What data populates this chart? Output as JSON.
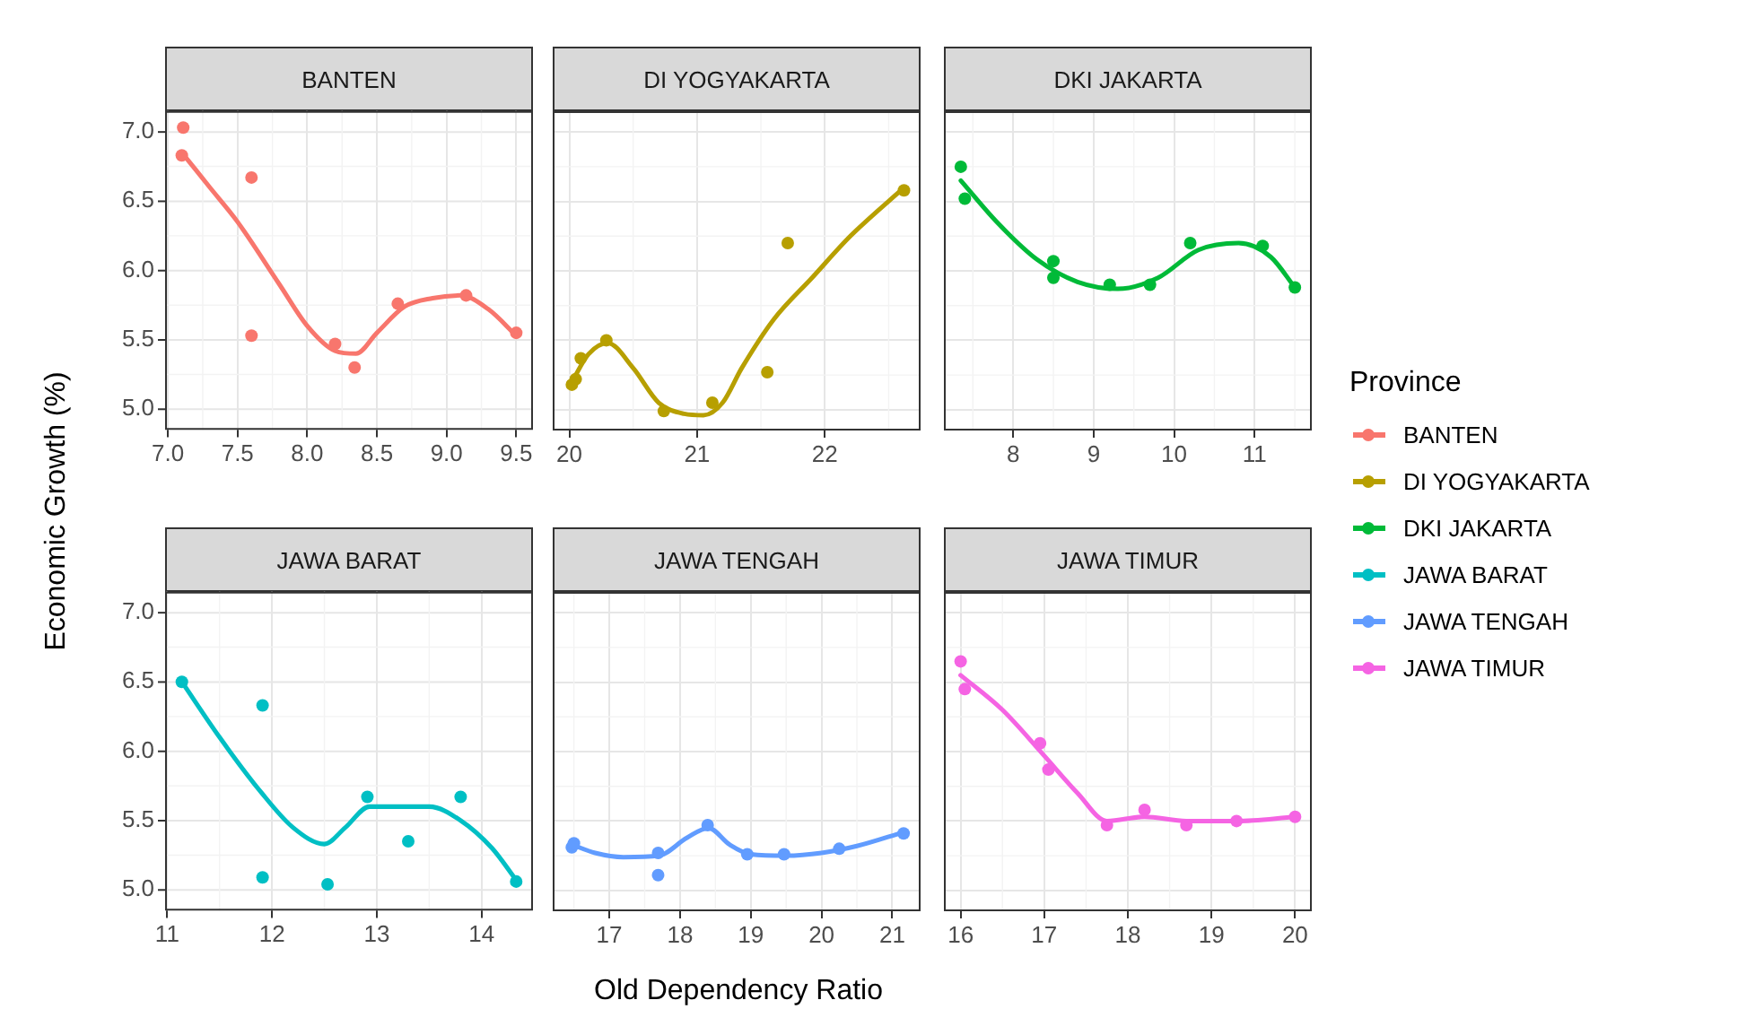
{
  "chart_data": [
    {
      "type": "scatter",
      "title": "BANTEN",
      "ylabel": "Economic Growth (%)",
      "legend": "right",
      "legend_title": "Province",
      "marker": "circle",
      "grid": true,
      "tick_labels": "xy",
      "xlim": [
        6.98,
        9.62
      ],
      "xticks": [
        {
          "value": 7,
          "label": "7.0"
        },
        {
          "value": 7.5,
          "label": "7.5"
        },
        {
          "value": 8,
          "label": "8.0"
        },
        {
          "value": 8.5,
          "label": "8.5"
        },
        {
          "value": 9,
          "label": "9.0"
        },
        {
          "value": 9.5,
          "label": "9.5"
        }
      ],
      "ylim": [
        4.85,
        7.15
      ],
      "yticks": [
        {
          "value": 5,
          "label": "5.0"
        },
        {
          "value": 5.5,
          "label": "5.5"
        },
        {
          "value": 6,
          "label": "6.0"
        },
        {
          "value": 6.5,
          "label": "6.5"
        },
        {
          "value": 7,
          "label": "7.0"
        }
      ],
      "series": [
        {
          "name": "BANTEN",
          "color": "#f8766d",
          "x": [
            7.11,
            7.1,
            7.6,
            7.6,
            8.2,
            8.34,
            8.65,
            9.14,
            9.5
          ],
          "values": [
            7.03,
            6.83,
            6.67,
            5.53,
            5.47,
            5.3,
            5.76,
            5.82,
            5.55
          ]
        },
        {
          "type": "line",
          "marker": "none",
          "color": "#f8766d",
          "x": [
            7.1,
            7.3,
            7.5,
            7.8,
            8.0,
            8.2,
            8.35,
            8.5,
            8.7,
            8.9,
            9.1,
            9.3,
            9.5
          ],
          "values": [
            6.85,
            6.6,
            6.35,
            5.9,
            5.6,
            5.42,
            5.4,
            5.55,
            5.74,
            5.8,
            5.82,
            5.72,
            5.53
          ]
        }
      ]
    },
    {
      "type": "scatter",
      "title": "DI YOGYAKARTA",
      "legend": "right",
      "marker": "circle",
      "grid": true,
      "tick_labels": "x",
      "xlim": [
        19.87,
        22.75
      ],
      "xticks": [
        20,
        21,
        22
      ],
      "ylim": [
        4.85,
        7.15
      ],
      "yticks": [
        5,
        5.5,
        6,
        6.5,
        7
      ],
      "series": [
        {
          "name": "DI YOGYAKARTA",
          "color": "#b79f00",
          "x": [
            20.02,
            20.05,
            20.09,
            20.29,
            20.74,
            21.12,
            21.55,
            21.71,
            22.62
          ],
          "values": [
            5.18,
            5.22,
            5.37,
            5.5,
            4.99,
            5.05,
            5.27,
            6.2,
            6.58
          ]
        },
        {
          "type": "line",
          "marker": "none",
          "color": "#b79f00",
          "x": [
            20.02,
            20.15,
            20.3,
            20.5,
            20.7,
            20.9,
            21.05,
            21.2,
            21.35,
            21.6,
            21.9,
            22.2,
            22.62
          ],
          "values": [
            5.2,
            5.4,
            5.48,
            5.3,
            5.05,
            4.97,
            4.96,
            5.05,
            5.3,
            5.65,
            5.95,
            6.25,
            6.6
          ]
        }
      ]
    },
    {
      "type": "scatter",
      "title": "DKI JAKARTA",
      "legend": "right",
      "marker": "circle",
      "grid": true,
      "tick_labels": "x",
      "xlim": [
        7.14,
        11.71
      ],
      "xticks": [
        8,
        9,
        10,
        11
      ],
      "ylim": [
        4.85,
        7.15
      ],
      "yticks": [
        5,
        5.5,
        6,
        6.5,
        7
      ],
      "series": [
        {
          "name": "DKI JAKARTA",
          "color": "#00ba38",
          "x": [
            7.35,
            7.4,
            8.5,
            8.5,
            9.2,
            9.7,
            10.2,
            11.1,
            11.5
          ],
          "values": [
            6.75,
            6.52,
            6.07,
            5.95,
            5.9,
            5.9,
            6.2,
            6.18,
            5.88
          ]
        },
        {
          "type": "line",
          "marker": "none",
          "color": "#00ba38",
          "x": [
            7.35,
            7.8,
            8.3,
            8.8,
            9.3,
            9.8,
            10.3,
            10.8,
            11.2,
            11.5
          ],
          "values": [
            6.65,
            6.35,
            6.08,
            5.92,
            5.87,
            5.95,
            6.15,
            6.2,
            6.1,
            5.88
          ]
        }
      ]
    },
    {
      "type": "scatter",
      "title": "JAWA BARAT",
      "legend": "right",
      "marker": "circle",
      "grid": true,
      "tick_labels": "xy",
      "xlim": [
        10.98,
        14.49
      ],
      "xticks": [
        11,
        12,
        13,
        14
      ],
      "ylim": [
        4.85,
        7.15
      ],
      "yticks": [
        {
          "value": 5,
          "label": "5.0"
        },
        {
          "value": 5.5,
          "label": "5.5"
        },
        {
          "value": 6,
          "label": "6.0"
        },
        {
          "value": 6.5,
          "label": "6.5"
        },
        {
          "value": 7,
          "label": "7.0"
        }
      ],
      "series": [
        {
          "name": "JAWA BARAT",
          "color": "#00bfc4",
          "x": [
            11.14,
            11.91,
            11.91,
            12.53,
            12.91,
            13.3,
            13.8,
            14.33
          ],
          "values": [
            6.5,
            6.33,
            5.09,
            5.04,
            5.67,
            5.35,
            5.67,
            5.06
          ]
        },
        {
          "type": "line",
          "marker": "none",
          "color": "#00bfc4",
          "x": [
            11.14,
            11.5,
            11.9,
            12.2,
            12.5,
            12.7,
            12.93,
            13.2,
            13.5,
            13.8,
            14.1,
            14.33
          ],
          "values": [
            6.5,
            6.1,
            5.7,
            5.45,
            5.33,
            5.45,
            5.6,
            5.6,
            5.6,
            5.5,
            5.3,
            5.07
          ]
        }
      ]
    },
    {
      "type": "scatter",
      "title": "JAWA TENGAH",
      "xlabel": "Old Dependency Ratio",
      "legend": "right",
      "marker": "circle",
      "grid": true,
      "tick_labels": "x",
      "xlim": [
        16.2,
        21.4
      ],
      "xticks": [
        17,
        18,
        19,
        20,
        21
      ],
      "ylim": [
        4.85,
        7.15
      ],
      "yticks": [
        5,
        5.5,
        6,
        6.5,
        7
      ],
      "series": [
        {
          "name": "JAWA TENGAH",
          "color": "#619cff",
          "x": [
            16.47,
            16.5,
            17.69,
            17.69,
            18.39,
            18.95,
            19.47,
            20.25,
            21.16
          ],
          "values": [
            5.31,
            5.34,
            5.27,
            5.11,
            5.47,
            5.26,
            5.26,
            5.3,
            5.41
          ]
        },
        {
          "type": "line",
          "marker": "none",
          "color": "#619cff",
          "x": [
            16.47,
            16.8,
            17.2,
            17.7,
            18.1,
            18.4,
            18.7,
            19.0,
            19.5,
            20.0,
            20.5,
            21.16
          ],
          "values": [
            5.33,
            5.27,
            5.24,
            5.25,
            5.38,
            5.45,
            5.33,
            5.26,
            5.25,
            5.27,
            5.32,
            5.42
          ]
        }
      ]
    },
    {
      "type": "scatter",
      "title": "JAWA TIMUR",
      "legend": "right",
      "marker": "circle",
      "grid": true,
      "tick_labels": "x",
      "xlim": [
        15.8,
        20.2
      ],
      "xticks": [
        16,
        17,
        18,
        19,
        20
      ],
      "ylim": [
        4.85,
        7.15
      ],
      "yticks": [
        5,
        5.5,
        6,
        6.5,
        7
      ],
      "series": [
        {
          "name": "JAWA TIMUR",
          "color": "#f564e3",
          "x": [
            16.0,
            16.05,
            16.95,
            17.05,
            17.75,
            18.2,
            18.7,
            19.3,
            20.0
          ],
          "values": [
            6.65,
            6.45,
            6.06,
            5.87,
            5.47,
            5.58,
            5.47,
            5.5,
            5.53
          ]
        },
        {
          "type": "line",
          "marker": "none",
          "color": "#f564e3",
          "x": [
            16.0,
            16.5,
            17.0,
            17.4,
            17.75,
            18.2,
            18.7,
            19.3,
            20.0
          ],
          "values": [
            6.55,
            6.3,
            5.97,
            5.7,
            5.5,
            5.53,
            5.5,
            5.5,
            5.53
          ]
        }
      ]
    }
  ]
}
